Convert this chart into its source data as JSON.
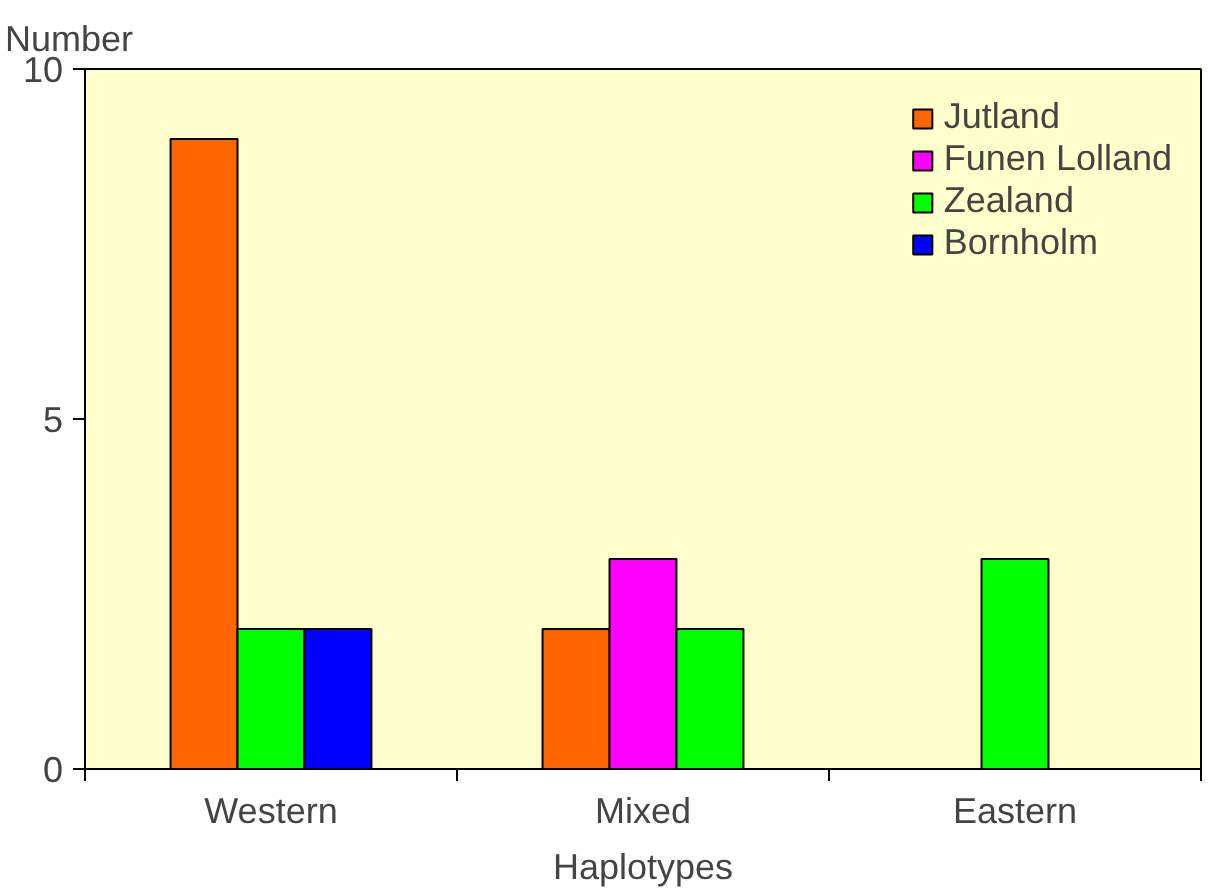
{
  "chart_data": {
    "type": "bar",
    "xlabel": "Haplotypes",
    "ylabel": "Number",
    "categories": [
      "Western",
      "Mixed",
      "Eastern"
    ],
    "series": [
      {
        "name": "Jutland",
        "color": "#ff6600",
        "values": [
          9,
          2,
          null
        ]
      },
      {
        "name": "Funen Lolland",
        "color": "#ff00ff",
        "values": [
          null,
          3,
          null
        ]
      },
      {
        "name": "Zealand",
        "color": "#00ff00",
        "values": [
          2,
          2,
          3
        ]
      },
      {
        "name": "Bornholm",
        "color": "#0000ff",
        "values": [
          2,
          null,
          null
        ]
      }
    ],
    "ylim": [
      0,
      10
    ],
    "yticks": [
      0,
      5,
      10
    ],
    "grid": false,
    "legend": "top right"
  }
}
